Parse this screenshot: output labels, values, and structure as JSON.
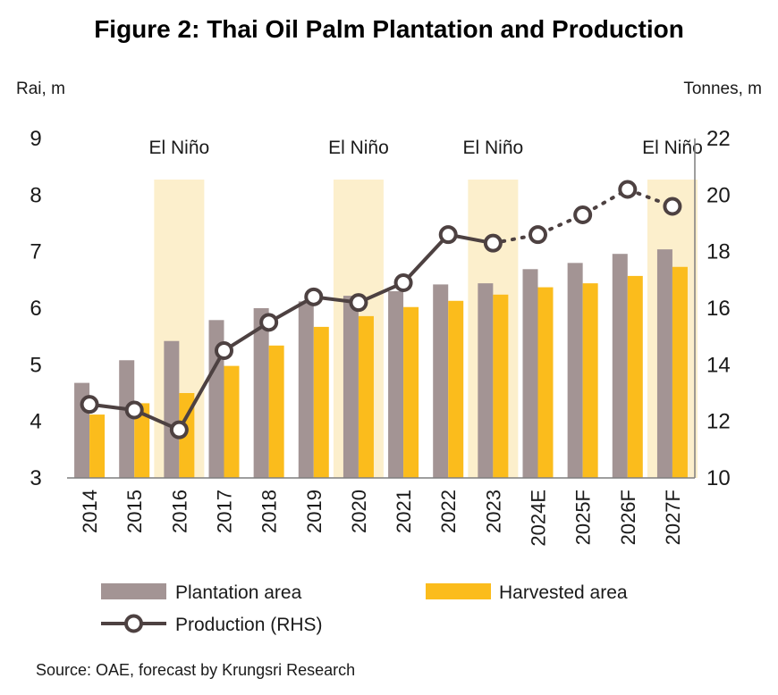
{
  "chart_data": {
    "type": "bar",
    "title": "Figure 2: Thai Oil Palm Plantation and Production",
    "left_axis": {
      "unit": "Rai, m",
      "range": [
        3,
        9
      ],
      "ticks": [
        "3",
        "4",
        "5",
        "6",
        "7",
        "8",
        "9"
      ]
    },
    "right_axis": {
      "unit": "Tonnes, m",
      "range": [
        10,
        22
      ],
      "ticks": [
        "10",
        "12",
        "14",
        "16",
        "18",
        "20",
        "22"
      ]
    },
    "categories": [
      "2014",
      "2015",
      "2016",
      "2017",
      "2018",
      "2019",
      "2020",
      "2021",
      "2022",
      "2023",
      "2024E",
      "2025F",
      "2026F",
      "2027F"
    ],
    "series": [
      {
        "name": "Plantation area",
        "kind": "bar",
        "axis": "left",
        "color": "#a39494",
        "values": [
          4.68,
          5.08,
          5.42,
          5.79,
          6.0,
          6.12,
          6.22,
          6.3,
          6.42,
          6.44,
          6.69,
          6.8,
          6.96,
          7.04
        ]
      },
      {
        "name": "Harvested area",
        "kind": "bar",
        "axis": "left",
        "color": "#fbbc1c",
        "values": [
          4.12,
          4.32,
          4.5,
          4.98,
          5.34,
          5.67,
          5.86,
          6.02,
          6.13,
          6.24,
          6.37,
          6.44,
          6.57,
          6.73
        ]
      },
      {
        "name": "Production (RHS)",
        "kind": "line",
        "axis": "right",
        "color": "#4d4141",
        "values": [
          12.6,
          12.4,
          11.7,
          14.5,
          15.5,
          16.4,
          16.2,
          16.9,
          18.6,
          18.3,
          18.6,
          19.3,
          20.2,
          19.6
        ],
        "forecast_from_index": 9
      }
    ],
    "shaded_periods": [
      {
        "label": "El Niño",
        "category": "2016"
      },
      {
        "label": "El Niño",
        "category": "2020"
      },
      {
        "label": "El Niño",
        "category": "2023"
      },
      {
        "label": "El Niño",
        "category": "2027F"
      }
    ],
    "shade_color": "#fcefcc",
    "legend": {
      "placement": "bottom"
    },
    "grid": false
  },
  "source": "Source: OAE, forecast by Krungsri Research"
}
